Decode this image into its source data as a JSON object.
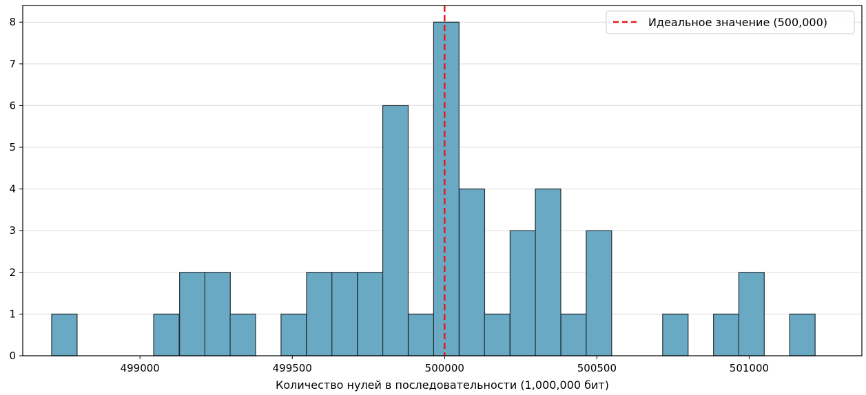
{
  "chart_data": {
    "type": "bar",
    "title": "",
    "xlabel": "Количество нулей в последовательности (1,000,000 бит)",
    "ylabel": "",
    "bin_width": 83.5,
    "bins": [
      {
        "x0": 498710,
        "count": 1
      },
      {
        "x0": 499045,
        "count": 1
      },
      {
        "x0": 499130,
        "count": 2
      },
      {
        "x0": 499213,
        "count": 2
      },
      {
        "x0": 499296,
        "count": 1
      },
      {
        "x0": 499463,
        "count": 1
      },
      {
        "x0": 499547,
        "count": 2
      },
      {
        "x0": 499630,
        "count": 2
      },
      {
        "x0": 499714,
        "count": 2
      },
      {
        "x0": 499797,
        "count": 6
      },
      {
        "x0": 499881,
        "count": 1
      },
      {
        "x0": 499964,
        "count": 8
      },
      {
        "x0": 500048,
        "count": 4
      },
      {
        "x0": 500131,
        "count": 1
      },
      {
        "x0": 500215,
        "count": 3
      },
      {
        "x0": 500298,
        "count": 4
      },
      {
        "x0": 500382,
        "count": 1
      },
      {
        "x0": 500465,
        "count": 3
      },
      {
        "x0": 500716,
        "count": 1
      },
      {
        "x0": 500883,
        "count": 1
      },
      {
        "x0": 500966,
        "count": 2
      },
      {
        "x0": 501133,
        "count": 1
      }
    ],
    "xlim": [
      498615,
      501370
    ],
    "ylim": [
      0,
      8.4
    ],
    "xticks": [
      499000,
      499500,
      500000,
      500500,
      501000
    ],
    "xtick_labels": [
      "499000",
      "499500",
      "500000",
      "500500",
      "501000"
    ],
    "yticks": [
      0,
      1,
      2,
      3,
      4,
      5,
      6,
      7,
      8
    ],
    "ytick_labels": [
      "0",
      "1",
      "2",
      "3",
      "4",
      "5",
      "6",
      "7",
      "8"
    ],
    "grid": "y",
    "reference_line": {
      "x": 500000,
      "label": "Идеальное значение (500,000)",
      "color": "#e31a1c"
    },
    "legend_position": "top-right",
    "bar_color": "#6aa9c4",
    "bar_edge_color": "#1f2d33"
  }
}
